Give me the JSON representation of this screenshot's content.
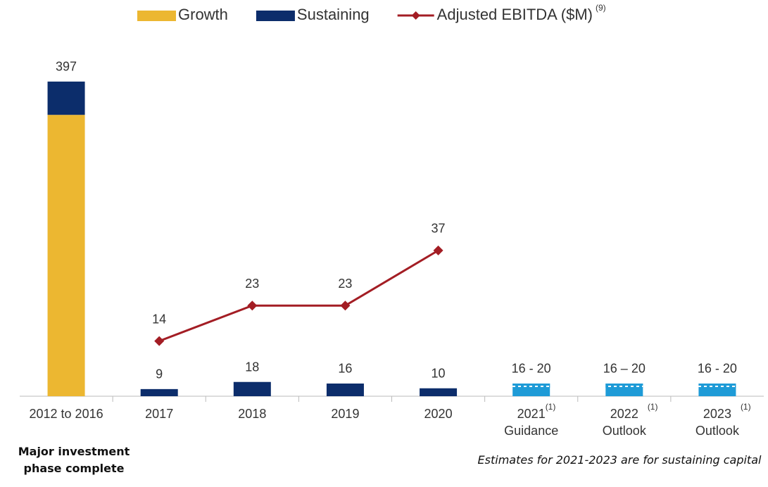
{
  "chart_data": {
    "type": "bar",
    "categories": [
      "2012 to 2016",
      "2017",
      "2018",
      "2019",
      "2020",
      "2021",
      "2022",
      "2023"
    ],
    "category_notes": [
      null,
      null,
      null,
      null,
      null,
      "(1)",
      "(1)",
      "(1)"
    ],
    "category_sublabels": [
      null,
      null,
      null,
      null,
      null,
      "Guidance",
      "Outlook",
      "Outlook"
    ],
    "series": [
      {
        "name": "Growth",
        "color": "#ecb731",
        "values": [
          355,
          0,
          0,
          0,
          0,
          null,
          null,
          null
        ]
      },
      {
        "name": "Sustaining",
        "color": "#0c2d6b",
        "values": [
          42,
          9,
          18,
          16,
          10,
          null,
          null,
          null
        ]
      },
      {
        "name": "Adjusted EBITDA ($M)",
        "note": "(9)",
        "type": "line",
        "axis": "y2",
        "color": "#a31d24",
        "values": [
          null,
          14,
          23,
          23,
          37,
          null,
          null,
          null
        ]
      }
    ],
    "estimates": {
      "color": "#1e9bd7",
      "low": [
        null,
        null,
        null,
        null,
        null,
        16,
        16,
        16
      ],
      "high": [
        null,
        null,
        null,
        null,
        null,
        20,
        20,
        20
      ]
    },
    "data_labels": [
      "397",
      "9",
      "18",
      "16",
      "10",
      "16 - 20",
      "16 – 20",
      "16 - 20"
    ],
    "line_labels": [
      null,
      "14",
      "23",
      "23",
      "37",
      null,
      null,
      null
    ],
    "ylim": [
      0,
      420
    ],
    "y2lim": [
      0,
      84.5
    ],
    "annotations": [
      "Major investment phase complete",
      "Estimates for 2021-2023 are for sustaining capital"
    ]
  }
}
